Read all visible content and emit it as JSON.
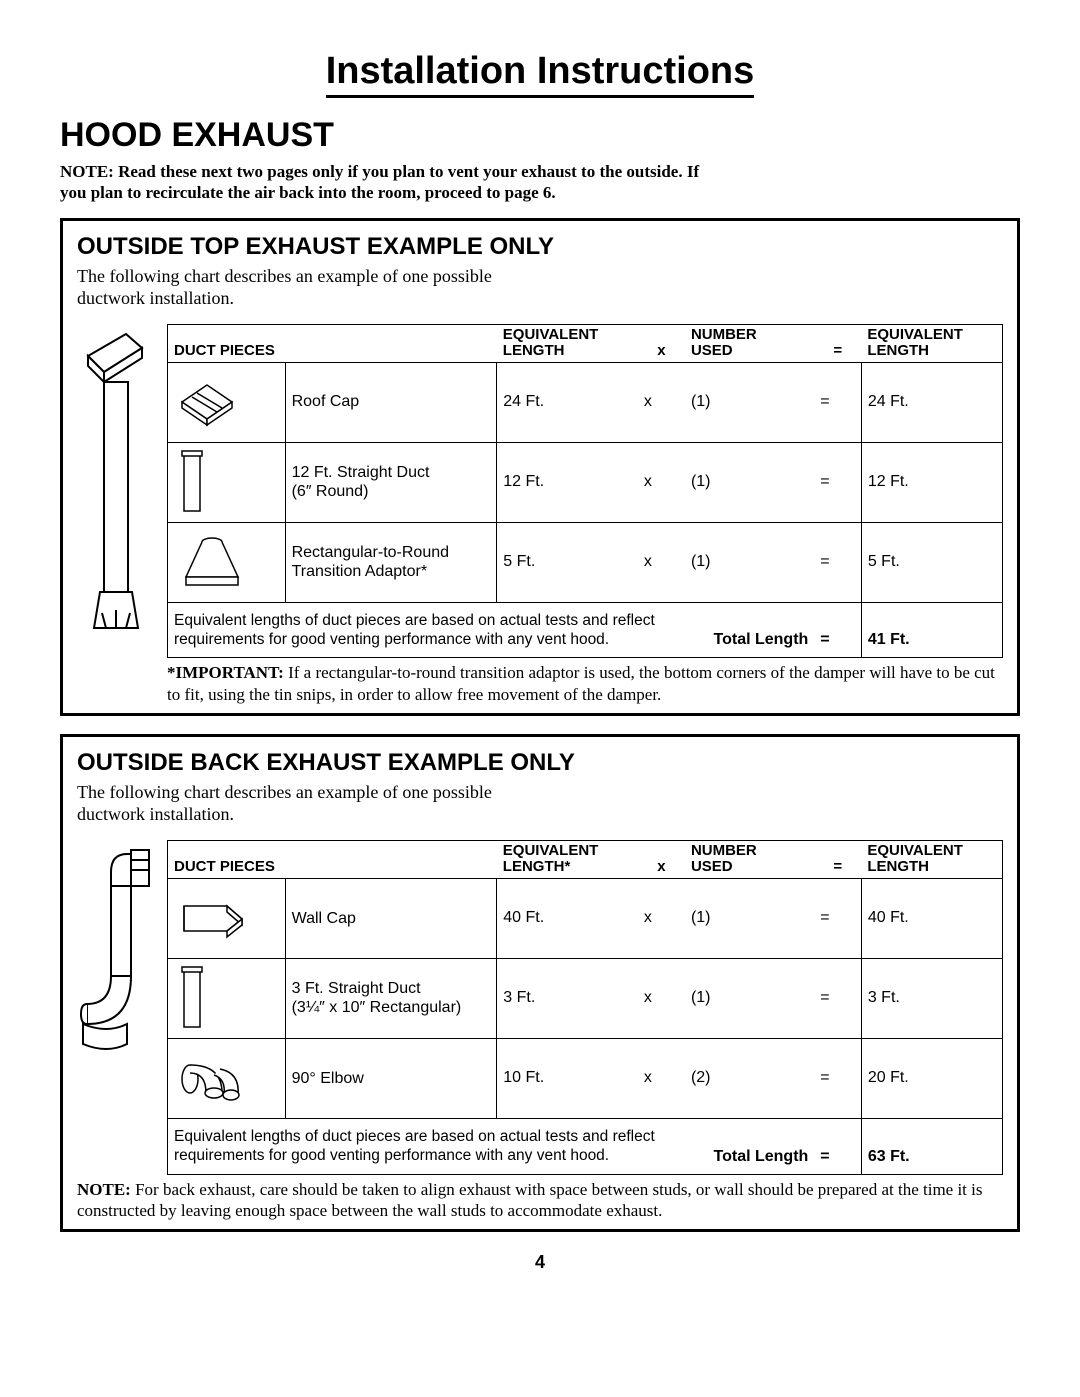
{
  "page_title": "Installation Instructions",
  "section_title": "HOOD EXHAUST",
  "note_bold": "NOTE: Read these next two pages only if you plan to vent your exhaust to the outside. If you plan to recirculate the air back into the room, proceed to page 6.",
  "page_number": "4",
  "columns": {
    "duct": "DUCT PIECES",
    "eqlen": "EQUIVALENT\nLENGTH",
    "eqlen_star": "EQUIVALENT\nLENGTH*",
    "x": "x",
    "num": "NUMBER\nUSED",
    "eq": "=",
    "reslen": "EQUIVALENT\nLENGTH"
  },
  "box_top": {
    "title": "OUTSIDE TOP EXHAUST EXAMPLE ONLY",
    "intro": "The following chart describes an example of one possible ductwork installation.",
    "rows": [
      {
        "name": "Roof Cap",
        "eq": "24 Ft.",
        "x": "x",
        "num": "(1)",
        "eq2": "=",
        "res": "24 Ft."
      },
      {
        "name": "12 Ft. Straight Duct\n(6″ Round)",
        "eq": "12 Ft.",
        "x": "x",
        "num": "(1)",
        "eq2": "=",
        "res": "12 Ft."
      },
      {
        "name": "Rectangular-to-Round\nTransition Adaptor*",
        "eq": "5 Ft.",
        "x": "x",
        "num": "(1)",
        "eq2": "=",
        "res": "5 Ft."
      }
    ],
    "total_note": "Equivalent lengths of duct pieces are based on actual tests and reflect requirements for good venting performance with any vent hood.",
    "total_label": "Total Length",
    "total_eq": "=",
    "total_val": "41 Ft.",
    "footnote_label": "*IMPORTANT:",
    "footnote": " If a rectangular-to-round transition adaptor is used, the bottom corners of the damper will have to be cut to fit, using the tin snips, in order to allow free movement of the damper."
  },
  "box_back": {
    "title": "OUTSIDE BACK EXHAUST EXAMPLE ONLY",
    "intro": "The following chart describes an example of one possible ductwork installation.",
    "rows": [
      {
        "name": "Wall Cap",
        "eq": "40 Ft.",
        "x": "x",
        "num": "(1)",
        "eq2": "=",
        "res": "40 Ft."
      },
      {
        "name": "3 Ft. Straight Duct\n(3¼″ x 10″ Rectangular)",
        "eq": "3 Ft.",
        "x": "x",
        "num": "(1)",
        "eq2": "=",
        "res": "3 Ft."
      },
      {
        "name": "90° Elbow",
        "eq": "10 Ft.",
        "x": "x",
        "num": "(2)",
        "eq2": "=",
        "res": "20 Ft."
      }
    ],
    "total_note": "Equivalent lengths of duct pieces are based on actual tests and reflect requirements for good venting performance with any vent hood.",
    "total_label": "Total Length",
    "total_eq": "=",
    "total_val": "63 Ft.",
    "footnote_label": "NOTE:",
    "footnote": " For back exhaust, care should be taken to align exhaust with space between studs, or wall should be prepared at the time it is constructed by leaving enough space between the wall studs to accommodate exhaust."
  }
}
